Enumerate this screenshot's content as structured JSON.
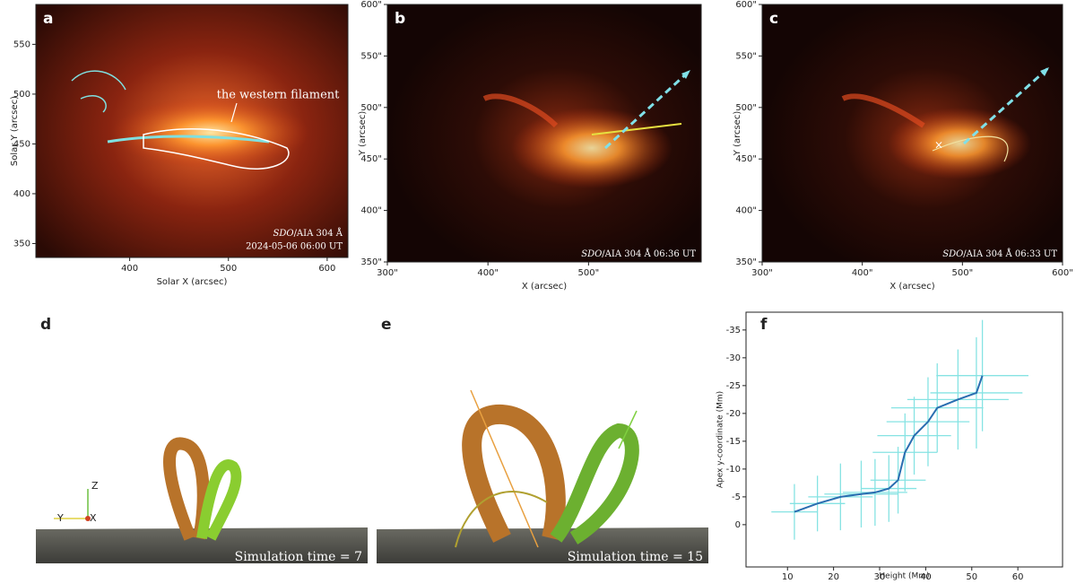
{
  "panels": [
    {
      "label": "a",
      "xlabel": "Solar X (arcsec)",
      "ylabel": "Solar Y (arcsec)",
      "xlim": [
        305,
        621
      ],
      "ylim": [
        336,
        590
      ],
      "xticks": [
        400,
        500,
        600
      ],
      "yticks": [
        350,
        400,
        450,
        500,
        550
      ],
      "annotation": "the western filament",
      "instrument": "SDO",
      "channel": "/AIA 304 Å",
      "time": "2024-05-06 06:00 UT"
    },
    {
      "label": "b",
      "xlabel": "X (arcsec)",
      "ylabel": "Y (arcsec)",
      "xlim": [
        300,
        612
      ],
      "ylim": [
        350,
        600
      ],
      "xticks": [
        {
          "value": 300,
          "label": "300\""
        },
        {
          "value": 400,
          "label": "400\""
        },
        {
          "value": 500,
          "label": "500\""
        }
      ],
      "yticks": [
        {
          "value": 350,
          "label": "350\""
        },
        {
          "value": 400,
          "label": "400\""
        },
        {
          "value": 450,
          "label": "450\""
        },
        {
          "value": 500,
          "label": "500\""
        },
        {
          "value": 550,
          "label": "550\""
        },
        {
          "value": 600,
          "label": "600\""
        }
      ],
      "instrument": "SDO",
      "channel": "/AIA 304 Å 06:36 UT"
    },
    {
      "label": "c",
      "xlabel": "X (arcsec)",
      "ylabel": "Y (arcsec)",
      "xlim": [
        300,
        600
      ],
      "ylim": [
        350,
        600
      ],
      "xticks": [
        {
          "value": 300,
          "label": "300\""
        },
        {
          "value": 400,
          "label": "400\""
        },
        {
          "value": 500,
          "label": "500\""
        },
        {
          "value": 600,
          "label": "600\""
        }
      ],
      "yticks": [
        {
          "value": 350,
          "label": "350\""
        },
        {
          "value": 400,
          "label": "400\""
        },
        {
          "value": 450,
          "label": "450\""
        },
        {
          "value": 500,
          "label": "500\""
        },
        {
          "value": 550,
          "label": "550\""
        },
        {
          "value": 600,
          "label": "600\""
        }
      ],
      "instrument": "SDO",
      "channel": "/AIA 304 Å 06:33 UT"
    },
    {
      "label": "d",
      "caption": "Simulation time = 7",
      "axes": [
        "Z",
        "Y",
        "X"
      ]
    },
    {
      "label": "e",
      "caption": "Simulation time = 15"
    }
  ],
  "chart_data": {
    "type": "line",
    "label": "f",
    "xlabel": "Height (Mm)",
    "ylabel": "Apex y-coordinate (Mm)",
    "x": [
      11.5,
      16.5,
      21.5,
      26,
      29,
      32,
      34,
      35.5,
      37.5,
      40.5,
      42.5,
      47,
      51,
      52.3
    ],
    "y": [
      -2.3,
      -3.8,
      -5,
      -5.5,
      -5.8,
      -6.5,
      -8,
      -13,
      -16,
      -18.5,
      -21,
      -22.5,
      -23.7,
      -26.8
    ],
    "xerr": [
      5,
      6,
      7,
      8,
      7,
      6,
      6,
      7,
      8,
      9,
      10,
      11,
      10,
      10
    ],
    "yerr": [
      5,
      5,
      6,
      6,
      6,
      6,
      6,
      7,
      7,
      8,
      8,
      9,
      10,
      10
    ],
    "color": "#2a6db0",
    "error_color": "#86e3e3",
    "xlim": [
      1,
      69.7
    ],
    "ylim": [
      7.6,
      -38.2
    ],
    "xticks": [
      10,
      20,
      30,
      40,
      50,
      60
    ],
    "yticks": [
      -35,
      -30,
      -25,
      -20,
      -15,
      -10,
      -5,
      0
    ]
  }
}
